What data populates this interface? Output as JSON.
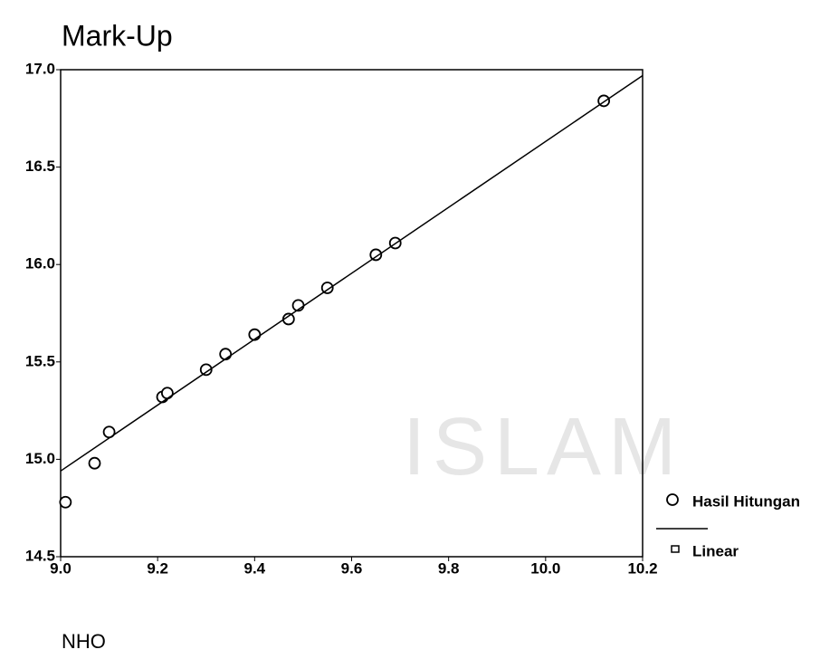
{
  "chart_data": {
    "type": "scatter",
    "title": "Mark-Up",
    "x_label": "NHO",
    "watermark": "ISLAM",
    "series": [
      {
        "name": "Hasil Hitungan",
        "kind": "scatter",
        "color": "#000000",
        "x": [
          9.01,
          9.07,
          9.1,
          9.21,
          9.22,
          9.3,
          9.34,
          9.4,
          9.47,
          9.49,
          9.55,
          9.65,
          9.69,
          10.12
        ],
        "values": [
          14.78,
          14.98,
          15.14,
          15.32,
          15.34,
          15.46,
          15.54,
          15.64,
          15.72,
          15.79,
          15.88,
          16.05,
          16.11,
          16.84
        ]
      },
      {
        "name": "Linear",
        "kind": "line",
        "color": "#000000",
        "x": [
          9.0,
          10.2
        ],
        "values": [
          14.94,
          16.97
        ]
      }
    ],
    "xlim": [
      9.0,
      10.2
    ],
    "xticks": [
      {
        "value": 9.0,
        "label": "9.0"
      },
      9.2,
      9.4,
      9.6,
      9.8,
      {
        "value": 10.0,
        "label": "10.0"
      },
      10.2
    ],
    "ylim": [
      14.5,
      17.0
    ],
    "yticks": [
      {
        "value": 14.5,
        "label": "14.5"
      },
      {
        "value": 15.0,
        "label": "15.0"
      },
      {
        "value": 15.5,
        "label": "15.5"
      },
      {
        "value": 16.0,
        "label": "16.0"
      },
      {
        "value": 16.5,
        "label": "16.5"
      },
      {
        "value": 17.0,
        "label": "17.0"
      }
    ],
    "grid": false,
    "legend": "right"
  }
}
